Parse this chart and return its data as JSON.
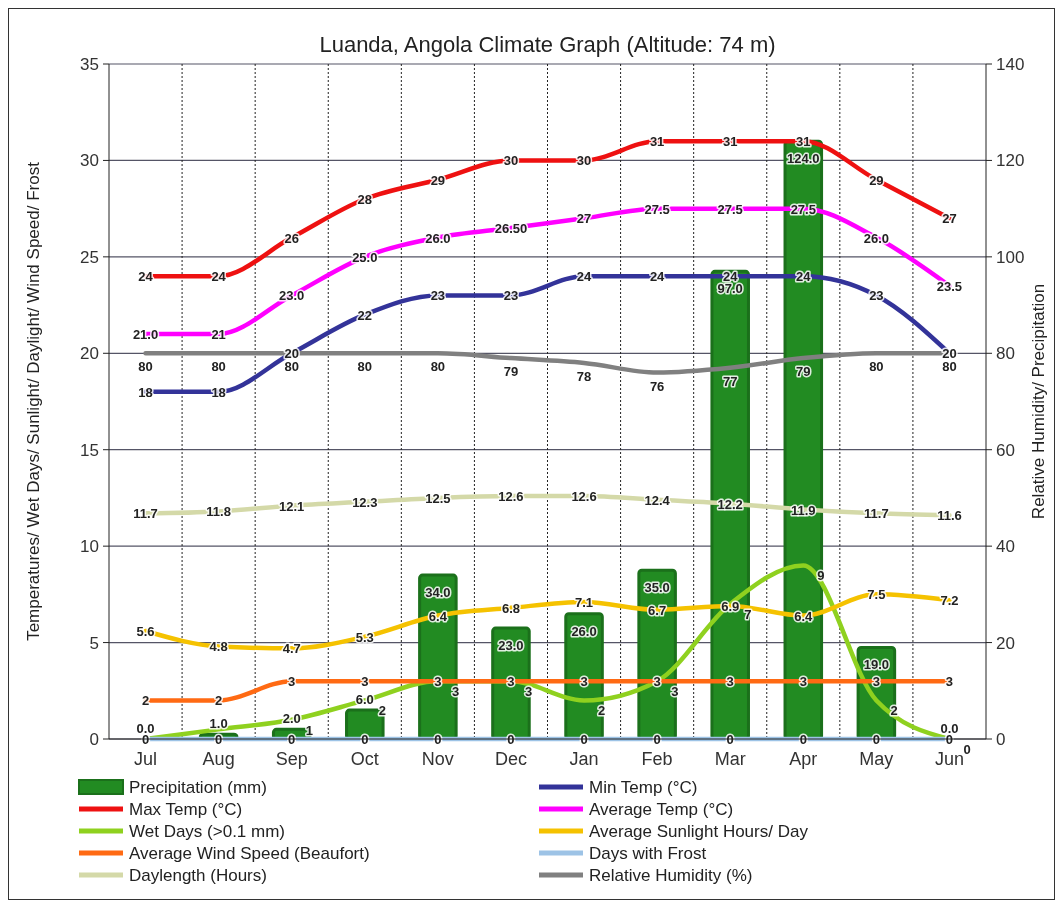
{
  "chart_data": {
    "type": "line",
    "title": "Luanda, Angola Climate Graph (Altitude: 74 m)",
    "ylabel": "Temperatures/ Wet Days/ Sunlight/ Daylight/ Wind Speed/ Frost",
    "y2label": "Relative Humidity/ Precipitation",
    "categories": [
      "Jul",
      "Aug",
      "Sep",
      "Oct",
      "Nov",
      "Dec",
      "Jan",
      "Feb",
      "Mar",
      "Apr",
      "May",
      "Jun"
    ],
    "ylim": [
      0,
      35
    ],
    "yticks": [
      0,
      5,
      10,
      15,
      20,
      25,
      30,
      35
    ],
    "y2lim": [
      0,
      140
    ],
    "y2ticks": [
      0,
      20,
      40,
      60,
      80,
      100,
      120,
      140
    ],
    "grid": true,
    "legend": "bottom",
    "series": [
      {
        "name": "Precipitation (mm)",
        "type": "bar",
        "axis": "y2",
        "color": "#228b22",
        "values": [
          0,
          1,
          2,
          6,
          34,
          23,
          26,
          35,
          97,
          124,
          19,
          0
        ],
        "value_labels": [
          "0.0",
          "1.0",
          "2.0",
          "6.0",
          "34.0",
          "23.0",
          "26.0",
          "35.0",
          "97.0",
          "124.0",
          "19.0",
          "0.0"
        ]
      },
      {
        "name": "Min Temp (°C)",
        "color": "#333399",
        "values": [
          18,
          18,
          20,
          22,
          23,
          23,
          24,
          24,
          24,
          24,
          23,
          20
        ],
        "value_labels": [
          "18",
          "18",
          "20",
          "22",
          "23",
          "23",
          "24",
          "24",
          "24",
          "24",
          "23",
          "20"
        ]
      },
      {
        "name": "Max Temp (°C)",
        "color": "#ee1111",
        "values": [
          24,
          24,
          26,
          28,
          29,
          30,
          30,
          31,
          31,
          31,
          29,
          27
        ],
        "value_labels": [
          "24",
          "24",
          "26",
          "28",
          "29",
          "30",
          "30",
          "31",
          "31",
          "31",
          "29",
          "27"
        ]
      },
      {
        "name": "Average Temp (°C)",
        "color": "#ff00ff",
        "values": [
          21,
          21,
          23,
          25,
          26,
          26.5,
          27,
          27.5,
          27.5,
          27.5,
          26,
          23.5
        ],
        "value_labels": [
          "21.0",
          "21",
          "23.0",
          "25.0",
          "26.0",
          "26.50",
          "27",
          "27.5",
          "27.5",
          "27.5",
          "26.0",
          "23.5"
        ]
      },
      {
        "name": "Wet Days (>0.1 mm)",
        "color": "#8fd11f",
        "values": [
          0,
          0.5,
          1,
          2,
          3,
          3,
          2,
          3,
          7,
          9,
          2,
          0
        ],
        "value_labels": [
          null,
          null,
          "1",
          "2",
          "3",
          "3",
          "2",
          "3",
          "7",
          "9",
          "2",
          "0"
        ]
      },
      {
        "name": "Average Sunlight Hours/ Day",
        "color": "#f5c200",
        "values": [
          5.6,
          4.8,
          4.7,
          5.3,
          6.4,
          6.8,
          7.1,
          6.7,
          6.9,
          6.4,
          7.5,
          7.2
        ],
        "value_labels": [
          "5.6",
          "4.8",
          "4.7",
          "5.3",
          "6.4",
          "6.8",
          "7.1",
          "6.7",
          "6.9",
          "6.4",
          "7.5",
          "7.2"
        ]
      },
      {
        "name": "Average Wind Speed (Beaufort)",
        "color": "#ff6a13",
        "values": [
          2,
          2,
          3,
          3,
          3,
          3,
          3,
          3,
          3,
          3,
          3,
          3
        ],
        "value_labels": [
          "2",
          "2",
          "3",
          "3",
          "3",
          "3",
          "3",
          "3",
          "3",
          "3",
          "3",
          "3"
        ]
      },
      {
        "name": "Days with Frost",
        "color": "#9dc3e6",
        "values": [
          0,
          0,
          0,
          0,
          0,
          0,
          0,
          0,
          0,
          0,
          0,
          0
        ],
        "value_labels": [
          "0",
          "0",
          "0",
          "0",
          "0",
          "0",
          "0",
          "0",
          "0",
          "0",
          "0",
          "0"
        ]
      },
      {
        "name": "Daylength (Hours)",
        "color": "#d4d9a8",
        "values": [
          11.7,
          11.8,
          12.1,
          12.3,
          12.5,
          12.6,
          12.6,
          12.4,
          12.2,
          11.9,
          11.7,
          11.6
        ],
        "value_labels": [
          "11.7",
          "11.8",
          "12.1",
          "12.3",
          "12.5",
          "12.6",
          "12.6",
          "12.4",
          "12.2",
          "11.9",
          "11.7",
          "11.6"
        ]
      },
      {
        "name": "Relative Humidity (%)",
        "axis": "y2",
        "color": "#808080",
        "values": [
          80,
          80,
          80,
          80,
          80,
          79,
          78,
          76,
          77,
          79,
          80,
          80
        ],
        "value_labels": [
          "80",
          "80",
          "80",
          "80",
          "80",
          "79",
          "78",
          "76",
          "77",
          "79",
          "80",
          "80"
        ]
      }
    ]
  }
}
